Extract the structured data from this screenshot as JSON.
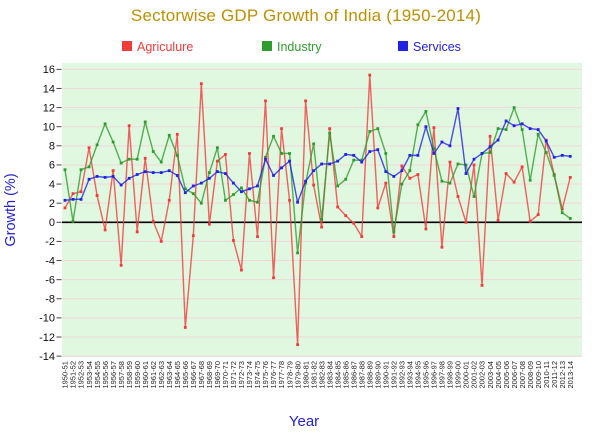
{
  "chart_data": {
    "type": "line",
    "title": "Sectorwise GDP Growth of India (1950-2014)",
    "title_color": "#BE9000",
    "xlabel": "Year",
    "ylabel": "Growth (%)",
    "axis_title_color": "#2323CC",
    "ylim": [
      -14,
      16
    ],
    "y_tick_step": 2,
    "grid": "horizontal",
    "legend_position": "top",
    "plot_bg": "#E0F7E0",
    "grid_color": "#F0D9D9",
    "zero_line_color": "#000000",
    "tick_color": "#444444",
    "tick_label_color": "#111111",
    "x_label_color": "#222222",
    "categories": [
      "1950-51",
      "1951-52",
      "1952-53",
      "1953-54",
      "1954-55",
      "1955-56",
      "1956-57",
      "1957-58",
      "1958-59",
      "1959-60",
      "1960-61",
      "1961-62",
      "1962-63",
      "1963-64",
      "1964-65",
      "1965-66",
      "1966-67",
      "1967-68",
      "1968-69",
      "1969-70",
      "1970-71",
      "1971-72",
      "1972-73",
      "1973-74",
      "1974-75",
      "1975-76",
      "1976-77",
      "1977-78",
      "1978-79",
      "1979-80",
      "1980-81",
      "1981-82",
      "1982-83",
      "1983-84",
      "1984-85",
      "1985-86",
      "1986-87",
      "1987-88",
      "1988-89",
      "1989-90",
      "1990-91",
      "1991-92",
      "1992-93",
      "1993-94",
      "1994-95",
      "1995-96",
      "1996-97",
      "1997-98",
      "1998-99",
      "1999-00",
      "2000-01",
      "2001-02",
      "2002-03",
      "2003-04",
      "2004-05",
      "2005-06",
      "2006-07",
      "2007-08",
      "2008-09",
      "2009-10",
      "2010-11",
      "2011-12",
      "2012-13",
      "2013-14"
    ],
    "series": [
      {
        "name": "Agriculure",
        "color": "#F23B3B",
        "values": [
          1.5,
          3.0,
          3.2,
          7.8,
          2.8,
          -0.8,
          5.4,
          -4.5,
          10.1,
          -1.0,
          6.7,
          0.1,
          -2.0,
          2.3,
          9.2,
          -11.0,
          -1.4,
          14.5,
          -0.2,
          6.4,
          7.1,
          -1.9,
          -5.0,
          7.2,
          -1.5,
          12.7,
          -5.8,
          9.8,
          2.3,
          -12.8,
          12.7,
          3.9,
          -0.5,
          9.8,
          1.6,
          0.7,
          -0.1,
          -1.5,
          15.4,
          1.5,
          4.1,
          -1.5,
          5.9,
          4.6,
          5.0,
          -0.7,
          9.9,
          -2.6,
          6.3,
          2.7,
          0.0,
          6.0,
          -6.6,
          9.0,
          0.2,
          5.1,
          4.2,
          5.8,
          0.1,
          0.8,
          8.6,
          5.0,
          1.4,
          4.7
        ]
      },
      {
        "name": "Industry",
        "color": "#2E9C2E",
        "values": [
          5.5,
          0.1,
          5.5,
          5.8,
          8.1,
          10.3,
          8.4,
          6.2,
          6.6,
          6.6,
          10.5,
          7.4,
          6.3,
          9.1,
          7.0,
          3.5,
          3.0,
          2.0,
          5.2,
          7.8,
          2.3,
          2.9,
          3.6,
          2.3,
          2.1,
          6.8,
          9.0,
          7.2,
          7.2,
          -3.2,
          4.1,
          8.2,
          0.3,
          9.3,
          3.8,
          4.5,
          6.5,
          6.5,
          9.5,
          9.8,
          7.2,
          -1.0,
          4.0,
          5.4,
          10.2,
          11.6,
          7.7,
          4.3,
          4.1,
          6.1,
          6.0,
          2.7,
          7.2,
          7.3,
          9.8,
          9.7,
          12.0,
          9.7,
          4.4,
          9.2,
          7.3,
          4.9,
          1.0,
          0.4
        ]
      },
      {
        "name": "Services",
        "color": "#2222E2",
        "values": [
          2.3,
          2.4,
          2.4,
          4.5,
          4.8,
          4.7,
          4.8,
          3.9,
          4.6,
          5.0,
          5.3,
          5.2,
          5.2,
          5.4,
          4.9,
          3.1,
          3.8,
          4.1,
          4.6,
          5.3,
          5.1,
          4.1,
          3.2,
          3.5,
          3.8,
          6.6,
          4.9,
          5.7,
          6.4,
          2.1,
          4.3,
          5.4,
          6.1,
          6.1,
          6.4,
          7.1,
          7.0,
          6.3,
          7.4,
          7.6,
          5.3,
          4.8,
          5.4,
          7.0,
          7.0,
          10.0,
          7.2,
          8.4,
          8.0,
          11.9,
          5.1,
          6.6,
          7.2,
          7.9,
          8.6,
          10.6,
          10.1,
          10.3,
          9.8,
          9.7,
          8.5,
          6.8,
          7.0,
          6.9
        ]
      }
    ]
  }
}
